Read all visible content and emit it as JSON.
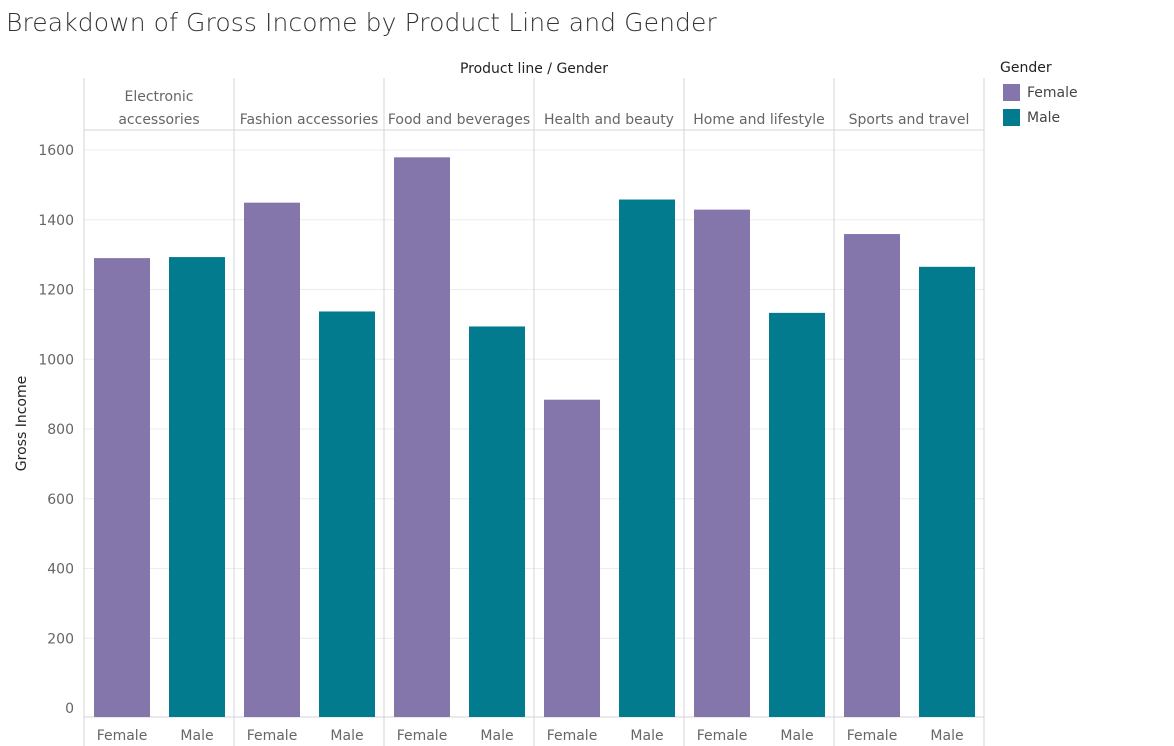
{
  "chart_data": {
    "type": "bar",
    "title": "Breakdown of Gross Income by Product Line and Gender",
    "header_label": "Product line  /  Gender",
    "xlabel": "",
    "ylabel": "Gross Income",
    "ylim": [
      0,
      1600
    ],
    "yticks": [
      0,
      200,
      400,
      600,
      800,
      1000,
      1200,
      1400,
      1600
    ],
    "grid": true,
    "legend_placement": "top-right",
    "legend_title": "Gender",
    "groups": [
      {
        "label": [
          "Electronic",
          "accessories"
        ],
        "values": [
          1290,
          1293
        ]
      },
      {
        "label": [
          "Fashion accessories"
        ],
        "values": [
          1449,
          1137
        ]
      },
      {
        "label": [
          "Food and beverages"
        ],
        "values": [
          1579,
          1094
        ]
      },
      {
        "label": [
          "Health and beauty"
        ],
        "values": [
          884,
          1458
        ]
      },
      {
        "label": [
          "Home and lifestyle"
        ],
        "values": [
          1429,
          1133
        ]
      },
      {
        "label": [
          "Sports and travel"
        ],
        "values": [
          1359,
          1265
        ]
      }
    ],
    "series": [
      {
        "name": "Female",
        "color": "#8476ab"
      },
      {
        "name": "Male",
        "color": "#027b8e"
      }
    ]
  }
}
